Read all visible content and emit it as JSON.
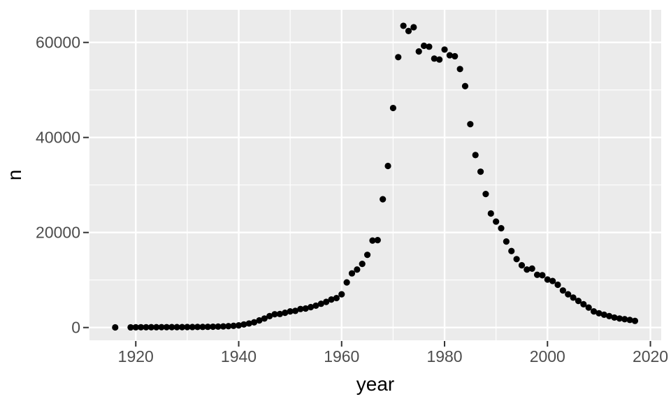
{
  "figure": {
    "background": "#FFFFFF",
    "panel_background": "#EBEBEB",
    "grid_color": "#FFFFFF",
    "point_color": "#000000",
    "tick_label_color": "#4D4D4D",
    "tick_mark_color": "#333333",
    "axis_title_color": "#000000"
  },
  "chart_data": {
    "type": "scatter",
    "title": "",
    "xlabel": "year",
    "ylabel": "n",
    "legend_position": "none",
    "grid": true,
    "xlim": [
      1911,
      2022.1
    ],
    "ylim": [
      -2690,
      66870
    ],
    "x_ticks_major": [
      1920,
      1940,
      1960,
      1980,
      2000,
      2020
    ],
    "x_ticks_minor": [
      1930,
      1950,
      1970,
      1990,
      2010
    ],
    "y_ticks_major": [
      0,
      20000,
      40000,
      60000
    ],
    "y_ticks_minor": [
      10000,
      30000,
      50000
    ],
    "x": [
      1916,
      1919,
      1920,
      1921,
      1922,
      1923,
      1924,
      1925,
      1926,
      1927,
      1928,
      1929,
      1930,
      1931,
      1932,
      1933,
      1934,
      1935,
      1936,
      1937,
      1938,
      1939,
      1940,
      1941,
      1942,
      1943,
      1944,
      1945,
      1946,
      1947,
      1948,
      1949,
      1950,
      1951,
      1952,
      1953,
      1954,
      1955,
      1956,
      1957,
      1958,
      1959,
      1960,
      1961,
      1962,
      1963,
      1964,
      1965,
      1966,
      1967,
      1968,
      1969,
      1970,
      1971,
      1972,
      1973,
      1974,
      1975,
      1976,
      1977,
      1978,
      1979,
      1980,
      1981,
      1982,
      1983,
      1984,
      1985,
      1986,
      1987,
      1988,
      1989,
      1990,
      1991,
      1992,
      1993,
      1994,
      1995,
      1996,
      1997,
      1998,
      1999,
      2000,
      2001,
      2002,
      2003,
      2004,
      2005,
      2006,
      2007,
      2008,
      2009,
      2010,
      2011,
      2012,
      2013,
      2014,
      2015,
      2016,
      2017
    ],
    "y": [
      30,
      40,
      50,
      60,
      60,
      70,
      70,
      80,
      80,
      90,
      90,
      90,
      100,
      110,
      120,
      130,
      150,
      170,
      200,
      240,
      290,
      360,
      450,
      650,
      850,
      1100,
      1500,
      1900,
      2400,
      2800,
      2850,
      3100,
      3400,
      3500,
      3900,
      4000,
      4300,
      4600,
      5000,
      5400,
      5900,
      6200,
      7000,
      9500,
      11400,
      12200,
      13400,
      15300,
      18300,
      18400,
      27000,
      34000,
      46200,
      56900,
      63500,
      62400,
      63200,
      58100,
      59300,
      59100,
      56600,
      56400,
      58500,
      57300,
      57100,
      54400,
      50800,
      42800,
      36300,
      32800,
      28100,
      24000,
      22300,
      20900,
      18100,
      16100,
      14400,
      13100,
      12200,
      12400,
      11100,
      11000,
      10100,
      9800,
      9000,
      7800,
      7000,
      6300,
      5600,
      4900,
      4200,
      3400,
      3000,
      2700,
      2400,
      2100,
      1900,
      1760,
      1600,
      1400
    ]
  }
}
